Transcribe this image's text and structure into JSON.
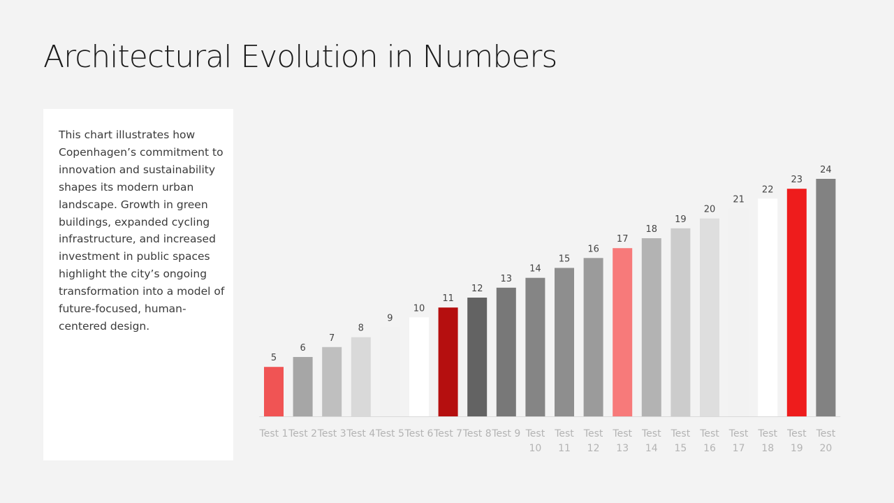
{
  "page": {
    "title": "Architectural Evolution in Numbers",
    "description": "This chart illustrates how Copenhagen’s commitment to innovation and sustainability shapes its modern urban landscape. Growth in green buildings, expanded cycling infrastructure, and increased investment in public spaces highlight the city’s ongoing transformation into a model of future-focused, human-centered design."
  },
  "chart_data": {
    "type": "bar",
    "title": "",
    "xlabel": "",
    "ylabel": "",
    "ylim": [
      0,
      24
    ],
    "grid": false,
    "legend": "none",
    "categories": [
      "Test 1",
      "Test 2",
      "Test 3",
      "Test 4",
      "Test 5",
      "Test 6",
      "Test 7",
      "Test 8",
      "Test 9",
      "Test 10",
      "Test 11",
      "Test 12",
      "Test 13",
      "Test 14",
      "Test 15",
      "Test 16",
      "Test 17",
      "Test 18",
      "Test 19",
      "Test 20"
    ],
    "values": [
      5,
      6,
      7,
      8,
      9,
      10,
      11,
      12,
      13,
      14,
      15,
      16,
      17,
      18,
      19,
      20,
      21,
      22,
      23,
      24
    ],
    "colors": [
      "#f05454",
      "#a6a6a6",
      "#bfbfbf",
      "#d9d9d9",
      "#f2f2f2",
      "#ffffff",
      "#b50f0f",
      "#636363",
      "#787878",
      "#858585",
      "#8e8e8e",
      "#9b9b9b",
      "#f77a7a",
      "#b3b3b3",
      "#cccccc",
      "#dedede",
      "#f2f2f2",
      "#ffffff",
      "#ee1c1c",
      "#828282"
    ],
    "axis_color": "#d9d9d9"
  }
}
